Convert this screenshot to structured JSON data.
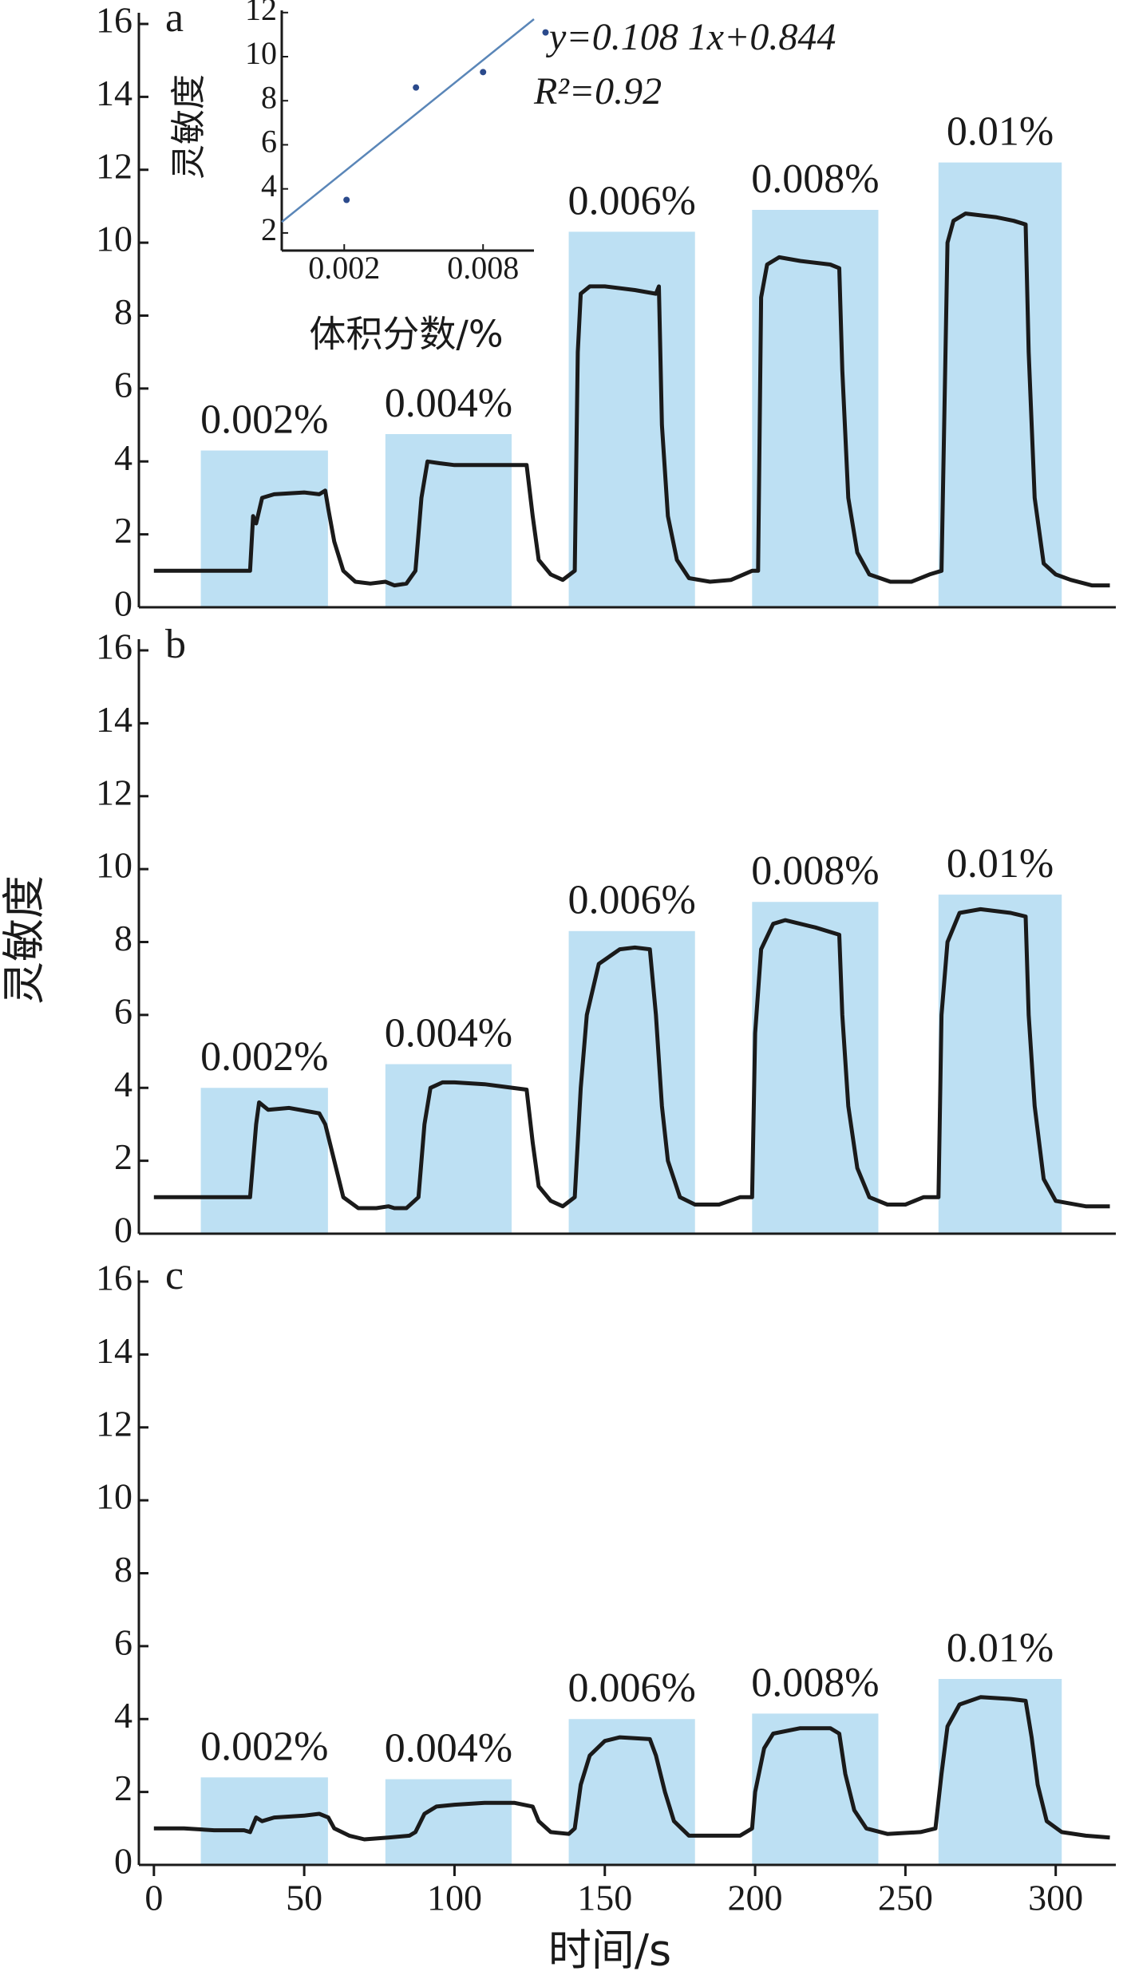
{
  "chart_data": [
    {
      "type": "line",
      "label": "a",
      "color": "#1a1a1a",
      "band_color": "#bde0f3",
      "xlim": [
        -5,
        320
      ],
      "ylim": [
        0,
        16
      ],
      "yticks": [
        0,
        2,
        4,
        6,
        8,
        10,
        12,
        14,
        16
      ],
      "bands": [
        {
          "label": "0.002%",
          "start": 15.6,
          "end": 57.9,
          "height": 4.3
        },
        {
          "label": "0.004%",
          "start": 77,
          "end": 119,
          "height": 4.75
        },
        {
          "label": "0.006%",
          "start": 138,
          "end": 180,
          "height": 10.3
        },
        {
          "label": "0.008%",
          "start": 199,
          "end": 241,
          "height": 10.9
        },
        {
          "label": "0.01%",
          "start": 261,
          "end": 302,
          "height": 12.2
        }
      ],
      "x": [
        0,
        32,
        33,
        34,
        36,
        40,
        50,
        55,
        57,
        58,
        60,
        63,
        67,
        72,
        77,
        80,
        84,
        87,
        89,
        91,
        95,
        100,
        110,
        124,
        126,
        128,
        132,
        136,
        140,
        141,
        142,
        145,
        150,
        160,
        167,
        168,
        169,
        171,
        174,
        178,
        185,
        192,
        199,
        201,
        202,
        204,
        208,
        215,
        225,
        228,
        229,
        231,
        234,
        238,
        245,
        252,
        258,
        262,
        264,
        266,
        270,
        280,
        286,
        290,
        291,
        293,
        296,
        300,
        305,
        312,
        318
      ],
      "values": [
        1.0,
        1.0,
        2.5,
        2.3,
        3.0,
        3.1,
        3.15,
        3.1,
        3.2,
        2.7,
        1.8,
        1.0,
        0.7,
        0.65,
        0.7,
        0.6,
        0.65,
        1.0,
        3.0,
        4.0,
        3.95,
        3.9,
        3.9,
        3.9,
        2.5,
        1.3,
        0.9,
        0.75,
        1.0,
        7.0,
        8.6,
        8.8,
        8.8,
        8.7,
        8.6,
        8.8,
        5.0,
        2.5,
        1.3,
        0.8,
        0.7,
        0.75,
        1.0,
        1.0,
        8.5,
        9.4,
        9.6,
        9.5,
        9.4,
        9.3,
        6.5,
        3.0,
        1.5,
        0.9,
        0.7,
        0.7,
        0.9,
        1.0,
        10.0,
        10.6,
        10.8,
        10.7,
        10.6,
        10.5,
        7.0,
        3.0,
        1.2,
        0.9,
        0.75,
        0.6,
        0.6
      ]
    },
    {
      "type": "line",
      "label": "b",
      "ylabel": "灵敏度",
      "color": "#1a1a1a",
      "band_color": "#bde0f3",
      "xlim": [
        -5,
        320
      ],
      "ylim": [
        0,
        16
      ],
      "yticks": [
        0,
        2,
        4,
        6,
        8,
        10,
        12,
        14,
        16
      ],
      "bands": [
        {
          "label": "0.002%",
          "start": 15.6,
          "end": 57.9,
          "height": 4.0
        },
        {
          "label": "0.004%",
          "start": 77,
          "end": 119,
          "height": 4.65
        },
        {
          "label": "0.006%",
          "start": 138,
          "end": 180,
          "height": 8.3
        },
        {
          "label": "0.008%",
          "start": 199,
          "end": 241,
          "height": 9.1
        },
        {
          "label": "0.01%",
          "start": 261,
          "end": 302,
          "height": 9.3
        }
      ],
      "x": [
        0,
        30,
        32,
        34,
        35,
        38,
        45,
        55,
        57,
        60,
        63,
        68,
        74,
        78,
        80,
        84,
        88,
        90,
        92,
        96,
        100,
        110,
        124,
        126,
        128,
        132,
        136,
        140,
        142,
        144,
        148,
        155,
        160,
        165,
        167,
        169,
        171,
        175,
        180,
        188,
        195,
        199,
        200,
        202,
        206,
        210,
        220,
        228,
        229,
        231,
        234,
        238,
        244,
        250,
        256,
        261,
        262,
        264,
        268,
        275,
        285,
        290,
        291,
        293,
        296,
        300,
        310,
        318
      ],
      "values": [
        1.0,
        1.0,
        1.0,
        3.0,
        3.6,
        3.4,
        3.45,
        3.3,
        3.0,
        2.0,
        1.0,
        0.7,
        0.7,
        0.75,
        0.7,
        0.7,
        1.0,
        3.0,
        4.0,
        4.15,
        4.15,
        4.1,
        3.95,
        2.5,
        1.3,
        0.9,
        0.75,
        1.0,
        4.0,
        6.0,
        7.4,
        7.8,
        7.85,
        7.8,
        6.0,
        3.5,
        2.0,
        1.0,
        0.8,
        0.8,
        1.0,
        1.0,
        5.5,
        7.8,
        8.5,
        8.6,
        8.4,
        8.2,
        6.0,
        3.5,
        1.8,
        1.0,
        0.8,
        0.8,
        1.0,
        1.0,
        6.0,
        8.0,
        8.8,
        8.9,
        8.8,
        8.7,
        6.0,
        3.5,
        1.5,
        0.9,
        0.75,
        0.75
      ]
    },
    {
      "type": "line",
      "label": "c",
      "xlabel": "时间/s",
      "color": "#1a1a1a",
      "band_color": "#bde0f3",
      "xlim": [
        -5,
        320
      ],
      "ylim": [
        0,
        16
      ],
      "yticks": [
        0,
        2,
        4,
        6,
        8,
        10,
        12,
        14,
        16
      ],
      "xticks": [
        0,
        50,
        100,
        150,
        200,
        250,
        300
      ],
      "bands": [
        {
          "label": "0.002%",
          "start": 15.6,
          "end": 57.9,
          "height": 2.4
        },
        {
          "label": "0.004%",
          "start": 77,
          "end": 119,
          "height": 2.35
        },
        {
          "label": "0.006%",
          "start": 138,
          "end": 180,
          "height": 4.0
        },
        {
          "label": "0.008%",
          "start": 199,
          "end": 241,
          "height": 4.15
        },
        {
          "label": "0.01%",
          "start": 261,
          "end": 302,
          "height": 5.1
        }
      ],
      "x": [
        0,
        10,
        20,
        30,
        32,
        34,
        36,
        40,
        50,
        55,
        58,
        60,
        65,
        70,
        78,
        85,
        87,
        90,
        94,
        100,
        110,
        120,
        126,
        128,
        132,
        138,
        140,
        142,
        145,
        150,
        155,
        165,
        167,
        170,
        173,
        178,
        190,
        195,
        199,
        200,
        203,
        206,
        215,
        225,
        228,
        230,
        233,
        237,
        244,
        255,
        260,
        262,
        264,
        268,
        275,
        285,
        290,
        292,
        294,
        297,
        302,
        310,
        318
      ],
      "values": [
        1.0,
        1.0,
        0.95,
        0.95,
        0.9,
        1.3,
        1.2,
        1.3,
        1.35,
        1.4,
        1.3,
        1.0,
        0.8,
        0.7,
        0.75,
        0.8,
        0.9,
        1.4,
        1.6,
        1.65,
        1.7,
        1.7,
        1.6,
        1.2,
        0.9,
        0.85,
        1.0,
        2.2,
        3.0,
        3.4,
        3.5,
        3.45,
        3.0,
        2.0,
        1.2,
        0.8,
        0.8,
        0.8,
        1.0,
        2.0,
        3.2,
        3.6,
        3.75,
        3.75,
        3.6,
        2.5,
        1.5,
        1.0,
        0.85,
        0.9,
        1.0,
        2.5,
        3.8,
        4.4,
        4.6,
        4.55,
        4.5,
        3.5,
        2.2,
        1.2,
        0.9,
        0.8,
        0.75
      ]
    },
    {
      "type": "scatter",
      "xlabel": "体积分数/%",
      "ylabel": "灵敏度",
      "equation": "y=0.108 1x+0.844",
      "r2": "R²=0.92",
      "color": "#2b4a8c",
      "fit_color": "#5a86b8",
      "xlim": [
        -0.0007,
        0.0102
      ],
      "ylim": [
        1.2,
        12.1
      ],
      "xticks": [
        0.002,
        0.008
      ],
      "yticks": [
        2,
        4,
        6,
        8,
        10,
        12
      ],
      "x": [
        0.0021,
        0.0051,
        0.008,
        0.0107
      ],
      "values": [
        3.5,
        8.6,
        9.3,
        11.1
      ],
      "fit_x": [
        -0.0007,
        0.0102
      ],
      "fit_values": [
        2.5,
        11.7
      ]
    }
  ]
}
